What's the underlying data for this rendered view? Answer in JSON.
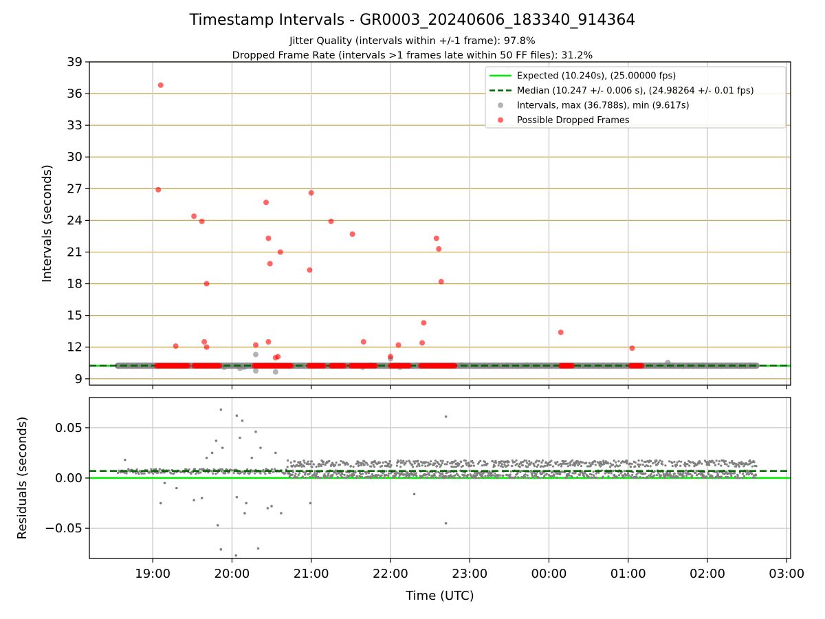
{
  "figure": {
    "title": "Timestamp Intervals - GR0003_20240606_183340_914364",
    "subtitle_1": "Jitter Quality (intervals within +/-1 frame): 97.8%",
    "subtitle_2": "Dropped Frame Rate (intervals >1 frames late within 50 FF files): 31.2%"
  },
  "colors": {
    "expected_line": "#00ee00",
    "median_line": "#006400",
    "intervals_points": "#808080",
    "dropped_points": "#ff0000",
    "horizontal_grid": "#c8a850",
    "vertical_grid": "#c8c8c8"
  },
  "chart_data": [
    {
      "type": "scatter",
      "panel": "top",
      "ylabel": "Intervals (seconds)",
      "ylim": [
        8.4,
        39
      ],
      "yticks": [
        9,
        12,
        15,
        18,
        21,
        24,
        27,
        30,
        33,
        36,
        39
      ],
      "grid": "on",
      "legend_placement": "top-right",
      "x_unit": "hours since 00:00 UTC on first day (ticks printed as HH:00)",
      "xlim": [
        18.2,
        27.05
      ],
      "xticks": [
        19,
        20,
        21,
        22,
        23,
        24,
        25,
        26,
        27
      ],
      "xtick_labels": [
        "19:00",
        "20:00",
        "21:00",
        "22:00",
        "23:00",
        "00:00",
        "01:00",
        "02:00",
        "03:00"
      ],
      "expected": {
        "label": "Expected (10.240s), (25.00000 fps)",
        "value": 10.24
      },
      "median": {
        "label": "Median (10.247 +/- 0.006 s), (24.98264 +/- 0.01 fps)",
        "value": 10.247
      },
      "intervals": {
        "label": "Intervals, max (36.788s), min (9.617s)",
        "band": {
          "x_start": 18.56,
          "x_end": 26.62,
          "y": 10.24
        },
        "outliers": [
          {
            "x": 19.9,
            "y": 10.1
          },
          {
            "x": 20.1,
            "y": 10.0
          },
          {
            "x": 20.15,
            "y": 10.1
          },
          {
            "x": 20.3,
            "y": 9.75
          },
          {
            "x": 20.3,
            "y": 11.3
          },
          {
            "x": 20.55,
            "y": 9.65
          },
          {
            "x": 21.65,
            "y": 10.1
          },
          {
            "x": 21.75,
            "y": 10.3
          },
          {
            "x": 22.0,
            "y": 10.9
          },
          {
            "x": 22.12,
            "y": 10.1
          },
          {
            "x": 22.9,
            "y": 10.3
          },
          {
            "x": 25.5,
            "y": 10.55
          }
        ]
      },
      "dropped": {
        "label": "Possible Dropped Frames",
        "clusters": [
          {
            "x_start": 19.05,
            "x_end": 19.45,
            "y": 10.24
          },
          {
            "x_start": 19.52,
            "x_end": 19.85,
            "y": 10.24
          },
          {
            "x_start": 20.28,
            "x_end": 20.75,
            "y": 10.24
          },
          {
            "x_start": 20.97,
            "x_end": 21.17,
            "y": 10.24
          },
          {
            "x_start": 21.25,
            "x_end": 21.42,
            "y": 10.24
          },
          {
            "x_start": 21.5,
            "x_end": 21.82,
            "y": 10.24
          },
          {
            "x_start": 22.0,
            "x_end": 22.25,
            "y": 10.24
          },
          {
            "x_start": 22.38,
            "x_end": 22.82,
            "y": 10.24
          },
          {
            "x_start": 24.15,
            "x_end": 24.3,
            "y": 10.24
          },
          {
            "x_start": 25.03,
            "x_end": 25.18,
            "y": 10.24
          }
        ],
        "points": [
          {
            "x": 19.1,
            "y": 36.8
          },
          {
            "x": 19.07,
            "y": 26.9
          },
          {
            "x": 19.29,
            "y": 12.1
          },
          {
            "x": 19.52,
            "y": 24.4
          },
          {
            "x": 19.62,
            "y": 23.9
          },
          {
            "x": 19.65,
            "y": 12.5
          },
          {
            "x": 19.68,
            "y": 18.0
          },
          {
            "x": 19.68,
            "y": 12.0
          },
          {
            "x": 20.3,
            "y": 12.2
          },
          {
            "x": 20.43,
            "y": 25.7
          },
          {
            "x": 20.46,
            "y": 12.5
          },
          {
            "x": 20.46,
            "y": 22.3
          },
          {
            "x": 20.48,
            "y": 19.9
          },
          {
            "x": 20.55,
            "y": 11.0
          },
          {
            "x": 20.58,
            "y": 11.1
          },
          {
            "x": 20.61,
            "y": 21.0
          },
          {
            "x": 20.98,
            "y": 19.3
          },
          {
            "x": 21.0,
            "y": 26.6
          },
          {
            "x": 21.25,
            "y": 23.9
          },
          {
            "x": 21.52,
            "y": 22.7
          },
          {
            "x": 21.66,
            "y": 12.5
          },
          {
            "x": 22.0,
            "y": 11.1
          },
          {
            "x": 22.1,
            "y": 12.2
          },
          {
            "x": 22.4,
            "y": 12.4
          },
          {
            "x": 22.42,
            "y": 14.3
          },
          {
            "x": 22.58,
            "y": 22.3
          },
          {
            "x": 22.61,
            "y": 21.3
          },
          {
            "x": 22.64,
            "y": 18.2
          },
          {
            "x": 24.15,
            "y": 13.4
          },
          {
            "x": 25.05,
            "y": 11.9
          }
        ]
      }
    },
    {
      "type": "scatter",
      "panel": "bottom",
      "ylabel": "Residuals (seconds)",
      "xlabel": "Time (UTC)",
      "ylim": [
        -0.08,
        0.08
      ],
      "yticks": [
        -0.05,
        0.0,
        0.05
      ],
      "ytick_labels": [
        "−0.05",
        "0.00",
        "0.05"
      ],
      "grid": "on",
      "x_unit": "hours since 00:00 UTC on first day (ticks printed as HH:00)",
      "xlim": [
        18.2,
        27.05
      ],
      "xticks": [
        19,
        20,
        21,
        22,
        23,
        24,
        25,
        26,
        27
      ],
      "xtick_labels": [
        "19:00",
        "20:00",
        "21:00",
        "22:00",
        "23:00",
        "00:00",
        "01:00",
        "02:00",
        "03:00"
      ],
      "expected_residual": 0.0,
      "median_residual": 0.007,
      "residuals": {
        "dense_range": {
          "x_start": 20.7,
          "x_end": 26.62,
          "y_low": 0.0,
          "y_high": 0.017
        },
        "early_range": {
          "x_start": 18.56,
          "x_end": 20.7,
          "y_low": 0.004,
          "y_high": 0.009
        },
        "outliers": [
          {
            "x": 18.65,
            "y": 0.018
          },
          {
            "x": 19.1,
            "y": -0.025
          },
          {
            "x": 19.15,
            "y": -0.005
          },
          {
            "x": 19.3,
            "y": -0.01
          },
          {
            "x": 19.52,
            "y": -0.022
          },
          {
            "x": 19.62,
            "y": -0.02
          },
          {
            "x": 19.68,
            "y": 0.02
          },
          {
            "x": 19.75,
            "y": 0.025
          },
          {
            "x": 19.8,
            "y": 0.037
          },
          {
            "x": 19.82,
            "y": -0.047
          },
          {
            "x": 19.86,
            "y": 0.068
          },
          {
            "x": 19.86,
            "y": -0.071
          },
          {
            "x": 19.88,
            "y": 0.03
          },
          {
            "x": 20.05,
            "y": -0.077
          },
          {
            "x": 20.06,
            "y": 0.062
          },
          {
            "x": 20.06,
            "y": -0.019
          },
          {
            "x": 20.1,
            "y": 0.04
          },
          {
            "x": 20.13,
            "y": 0.057
          },
          {
            "x": 20.16,
            "y": -0.035
          },
          {
            "x": 20.18,
            "y": -0.025
          },
          {
            "x": 20.25,
            "y": 0.02
          },
          {
            "x": 20.3,
            "y": 0.046
          },
          {
            "x": 20.33,
            "y": -0.07
          },
          {
            "x": 20.36,
            "y": 0.03
          },
          {
            "x": 20.45,
            "y": -0.03
          },
          {
            "x": 20.5,
            "y": -0.028
          },
          {
            "x": 20.55,
            "y": 0.025
          },
          {
            "x": 20.62,
            "y": -0.035
          },
          {
            "x": 20.99,
            "y": -0.025
          },
          {
            "x": 22.3,
            "y": -0.016
          },
          {
            "x": 22.7,
            "y": 0.061
          },
          {
            "x": 22.7,
            "y": -0.045
          }
        ]
      }
    }
  ]
}
